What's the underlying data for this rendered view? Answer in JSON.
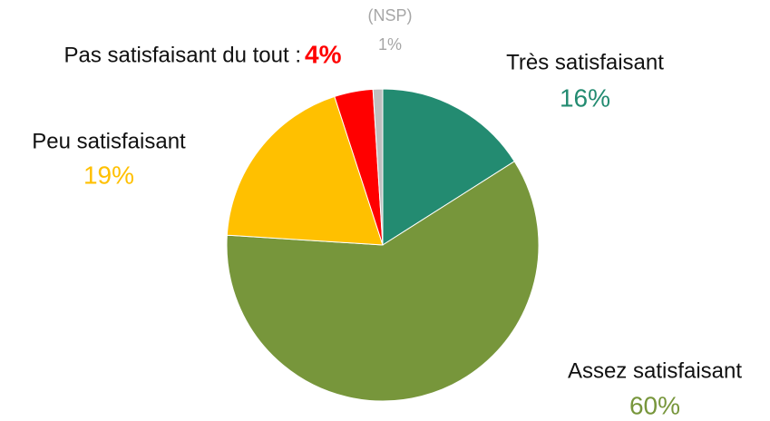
{
  "chart_data": {
    "type": "pie",
    "categories": [
      "Très satisfaisant",
      "Assez satisfaisant",
      "Peu satisfaisant",
      "Pas satisfaisant du tout :",
      "(NSP)"
    ],
    "values": [
      16,
      60,
      19,
      4,
      1
    ],
    "value_labels": [
      "16%",
      "60%",
      "19%",
      "4%",
      "1%"
    ],
    "colors": [
      "#238b71",
      "#77963b",
      "#ffc000",
      "#ff0000",
      "#bfbfbf"
    ],
    "label_colors": [
      "#111111",
      "#111111",
      "#111111",
      "#111111",
      "#a6a6a6"
    ],
    "value_label_colors": [
      "#238b71",
      "#77963b",
      "#ffc000",
      "#ff0000",
      "#a6a6a6"
    ]
  }
}
